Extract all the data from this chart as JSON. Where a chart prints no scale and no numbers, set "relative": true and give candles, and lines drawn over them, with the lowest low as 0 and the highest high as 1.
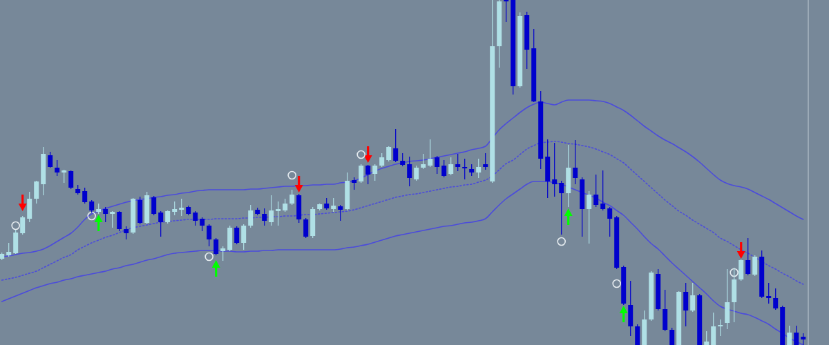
{
  "chart_data": {
    "type": "candlestick",
    "relative": true,
    "categories": [
      null,
      null,
      null,
      null,
      null,
      null,
      null,
      null,
      null,
      null,
      null,
      null,
      null,
      null,
      null,
      null,
      null,
      null,
      null,
      null,
      null,
      null,
      null,
      null,
      null,
      null,
      null,
      null,
      null,
      null,
      null,
      null,
      null,
      null,
      null,
      null,
      null,
      null,
      null,
      null,
      null,
      null,
      null,
      null,
      null,
      null,
      null,
      null,
      null,
      null,
      null,
      null,
      null,
      null,
      null,
      null,
      null,
      null,
      null,
      null,
      null,
      null,
      null,
      null,
      null,
      null,
      null,
      null,
      null,
      null,
      null,
      null,
      null,
      null,
      null,
      null,
      null,
      null,
      null,
      null,
      null,
      null,
      null,
      null,
      null,
      null,
      null,
      null,
      null,
      null,
      null,
      null,
      null,
      null,
      null,
      null,
      null,
      null,
      null,
      null,
      null,
      null,
      null,
      null,
      null,
      null,
      null,
      null,
      null,
      null,
      null,
      null,
      null,
      null,
      null,
      null,
      null
    ],
    "ohlc": [
      [
        0.25,
        0.268,
        0.246,
        0.264
      ],
      [
        0.26,
        0.296,
        0.256,
        0.27
      ],
      [
        0.266,
        0.334,
        0.264,
        0.326
      ],
      [
        0.324,
        0.374,
        0.32,
        0.37
      ],
      [
        0.366,
        0.444,
        0.356,
        0.424
      ],
      [
        0.424,
        0.476,
        0.41,
        0.474
      ],
      [
        0.466,
        0.574,
        0.434,
        0.554
      ],
      [
        0.55,
        0.56,
        0.514,
        0.516
      ],
      [
        0.514,
        0.536,
        0.49,
        0.5
      ],
      [
        0.5,
        0.508,
        0.47,
        0.506
      ],
      [
        0.504,
        0.506,
        0.452,
        0.456
      ],
      [
        0.452,
        0.464,
        0.436,
        0.44
      ],
      [
        0.446,
        0.456,
        0.41,
        0.414
      ],
      [
        0.416,
        0.42,
        0.384,
        0.39
      ],
      [
        0.386,
        0.41,
        0.38,
        0.394
      ],
      [
        0.394,
        0.4,
        0.356,
        0.38
      ],
      [
        0.38,
        0.388,
        0.34,
        0.386
      ],
      [
        0.386,
        0.388,
        0.33,
        0.336
      ],
      [
        0.336,
        0.344,
        0.306,
        0.324
      ],
      [
        0.326,
        0.426,
        0.322,
        0.424
      ],
      [
        0.42,
        0.43,
        0.35,
        0.354
      ],
      [
        0.354,
        0.444,
        0.35,
        0.434
      ],
      [
        0.428,
        0.432,
        0.376,
        0.38
      ],
      [
        0.384,
        0.388,
        0.314,
        0.356
      ],
      [
        0.356,
        0.39,
        0.352,
        0.388
      ],
      [
        0.386,
        0.416,
        0.376,
        0.394
      ],
      [
        0.392,
        0.424,
        0.374,
        0.398
      ],
      [
        0.4,
        0.404,
        0.376,
        0.38
      ],
      [
        0.384,
        0.388,
        0.346,
        0.36
      ],
      [
        0.366,
        0.37,
        0.33,
        0.346
      ],
      [
        0.346,
        0.35,
        0.286,
        0.306
      ],
      [
        0.306,
        0.31,
        0.26,
        0.264
      ],
      [
        0.272,
        0.286,
        0.244,
        0.28
      ],
      [
        0.276,
        0.346,
        0.272,
        0.34
      ],
      [
        0.34,
        0.344,
        0.292,
        0.296
      ],
      [
        0.296,
        0.35,
        0.276,
        0.346
      ],
      [
        0.346,
        0.406,
        0.34,
        0.39
      ],
      [
        0.392,
        0.398,
        0.376,
        0.38
      ],
      [
        0.38,
        0.396,
        0.346,
        0.36
      ],
      [
        0.356,
        0.434,
        0.346,
        0.39
      ],
      [
        0.388,
        0.416,
        0.346,
        0.394
      ],
      [
        0.39,
        0.424,
        0.386,
        0.41
      ],
      [
        0.41,
        0.45,
        0.406,
        0.436
      ],
      [
        0.434,
        0.438,
        0.354,
        0.364
      ],
      [
        0.364,
        0.368,
        0.31,
        0.314
      ],
      [
        0.316,
        0.4,
        0.31,
        0.394
      ],
      [
        0.394,
        0.41,
        0.39,
        0.408
      ],
      [
        0.41,
        0.426,
        0.392,
        0.396
      ],
      [
        0.394,
        0.426,
        0.386,
        0.404
      ],
      [
        0.402,
        0.406,
        0.36,
        0.392
      ],
      [
        0.394,
        0.5,
        0.39,
        0.476
      ],
      [
        0.478,
        0.486,
        0.45,
        0.47
      ],
      [
        0.474,
        0.524,
        0.47,
        0.52
      ],
      [
        0.52,
        0.522,
        0.466,
        0.494
      ],
      [
        0.496,
        0.524,
        0.476,
        0.52
      ],
      [
        0.52,
        0.556,
        0.516,
        0.544
      ],
      [
        0.536,
        0.576,
        0.532,
        0.574
      ],
      [
        0.57,
        0.626,
        0.53,
        0.534
      ],
      [
        0.534,
        0.556,
        0.518,
        0.522
      ],
      [
        0.524,
        0.546,
        0.46,
        0.484
      ],
      [
        0.48,
        0.52,
        0.476,
        0.514
      ],
      [
        0.514,
        0.554,
        0.51,
        0.524
      ],
      [
        0.52,
        0.596,
        0.516,
        0.54
      ],
      [
        0.544,
        0.548,
        0.496,
        0.516
      ],
      [
        0.52,
        0.536,
        0.486,
        0.49
      ],
      [
        0.496,
        0.544,
        0.492,
        0.524
      ],
      [
        0.524,
        0.554,
        0.504,
        0.516
      ],
      [
        0.516,
        0.54,
        0.48,
        0.512
      ],
      [
        0.51,
        0.524,
        0.49,
        0.5
      ],
      [
        0.5,
        0.54,
        0.484,
        0.516
      ],
      [
        0.524,
        0.556,
        0.508,
        0.516
      ],
      [
        0.474,
        1,
        0.47,
        0.866
      ],
      [
        0.866,
        1,
        0.804,
        0.996
      ],
      [
        1,
        1,
        0.936,
        0.996
      ],
      [
        1,
        1,
        0.726,
        0.75
      ],
      [
        0.75,
        0.964,
        0.746,
        0.954
      ],
      [
        0.956,
        0.966,
        0.8,
        0.856
      ],
      [
        0.86,
        0.916,
        0.704,
        0.706
      ],
      [
        0.706,
        0.736,
        0.51,
        0.54
      ],
      [
        0.546,
        0.596,
        0.426,
        0.474
      ],
      [
        0.48,
        0.586,
        0.43,
        0.466
      ],
      [
        0.47,
        0.476,
        0.32,
        0.44
      ],
      [
        0.44,
        0.58,
        0.4,
        0.514
      ],
      [
        0.514,
        0.594,
        0.466,
        0.484
      ],
      [
        0.48,
        0.486,
        0.314,
        0.394
      ],
      [
        0.394,
        0.446,
        0.294,
        0.436
      ],
      [
        0.436,
        0.494,
        0.4,
        0.406
      ],
      [
        0.41,
        0.506,
        0.39,
        0.394
      ],
      [
        0.396,
        0.4,
        0.314,
        0.366
      ],
      [
        0.37,
        0.374,
        0.22,
        0.224
      ],
      [
        0.226,
        0.23,
        0.116,
        0.12
      ],
      [
        0.116,
        0.186,
        0.026,
        0.054
      ],
      [
        0.054,
        0.06,
        0,
        0
      ],
      [
        0,
        0.1,
        0,
        0.074
      ],
      [
        0.074,
        0.214,
        0.07,
        0.21
      ],
      [
        0.206,
        0.22,
        0.1,
        0.104
      ],
      [
        0.104,
        0.16,
        0.04,
        0.044
      ],
      [
        0.044,
        0.05,
        0,
        0
      ],
      [
        0,
        0.156,
        0,
        0.154
      ],
      [
        0.154,
        0.18,
        0.054,
        0.1
      ],
      [
        0.1,
        0.18,
        0.096,
        0.144
      ],
      [
        0.144,
        0.148,
        0,
        0
      ],
      [
        0,
        0.04,
        0,
        0.01
      ],
      [
        0,
        0.094,
        0,
        0.054
      ],
      [
        0.054,
        0.074,
        0.026,
        0.058
      ],
      [
        0.064,
        0.22,
        0.046,
        0.124
      ],
      [
        0.124,
        0.224,
        0.066,
        0.19
      ],
      [
        0.19,
        0.248,
        0.186,
        0.246
      ],
      [
        0.246,
        0.31,
        0.202,
        0.206
      ],
      [
        0.204,
        0.26,
        0.2,
        0.256
      ],
      [
        0.256,
        0.274,
        0.136,
        0.14
      ],
      [
        0.142,
        0.18,
        0.12,
        0.136
      ],
      [
        0.136,
        0.164,
        0.102,
        0.106
      ],
      [
        0.11,
        0.114,
        0,
        0
      ],
      [
        0,
        0.056,
        0,
        0.036
      ],
      [
        0.036,
        0.056,
        0,
        0
      ],
      [
        0.024,
        0.034,
        0,
        0.016
      ]
    ],
    "colors": [
      "#b0e0e6",
      "#b0e0e6",
      "#b0e0e6",
      "#b0e0e6",
      "#b0e0e6",
      "#b0e0e6",
      "#b0e0e6",
      "#0000cd",
      "#0000cd",
      "#b0e0e6",
      "#0000cd",
      "#0000cd",
      "#0000cd",
      "#0000cd",
      "#b0e0e6",
      "#0000cd",
      "#b0e0e6",
      "#0000cd",
      "#0000cd",
      "#b0e0e6",
      "#0000cd",
      "#b0e0e6",
      "#0000cd",
      "#0000cd",
      "#b0e0e6",
      "#b0e0e6",
      "#b0e0e6",
      "#0000cd",
      "#0000cd",
      "#0000cd",
      "#0000cd",
      "#0000cd",
      "#b0e0e6",
      "#b0e0e6",
      "#0000cd",
      "#b0e0e6",
      "#b0e0e6",
      "#0000cd",
      "#0000cd",
      "#b0e0e6",
      "#b0e0e6",
      "#b0e0e6",
      "#b0e0e6",
      "#0000cd",
      "#0000cd",
      "#b0e0e6",
      "#b0e0e6",
      "#0000cd",
      "#b0e0e6",
      "#0000cd",
      "#b0e0e6",
      "#0000cd",
      "#b0e0e6",
      "#0000cd",
      "#b0e0e6",
      "#b0e0e6",
      "#b0e0e6",
      "#0000cd",
      "#0000cd",
      "#0000cd",
      "#b0e0e6",
      "#b0e0e6",
      "#b0e0e6",
      "#0000cd",
      "#0000cd",
      "#b0e0e6",
      "#0000cd",
      "#0000cd",
      "#0000cd",
      "#b0e0e6",
      "#0000cd",
      "#b0e0e6",
      "#b0e0e6",
      "#0000cd",
      "#0000cd",
      "#b0e0e6",
      "#0000cd",
      "#0000cd",
      "#0000cd",
      "#0000cd",
      "#0000cd",
      "#0000cd",
      "#b0e0e6",
      "#0000cd",
      "#0000cd",
      "#b0e0e6",
      "#0000cd",
      "#0000cd",
      "#0000cd",
      "#0000cd",
      "#0000cd",
      "#0000cd",
      "#0000cd",
      "#b0e0e6",
      "#b0e0e6",
      "#0000cd",
      "#0000cd",
      "#0000cd",
      "#b0e0e6",
      "#0000cd",
      "#b0e0e6",
      "#0000cd",
      "#b0e0e6",
      "#b0e0e6",
      "#b0e0e6",
      "#b0e0e6",
      "#b0e0e6",
      "#b0e0e6",
      "#0000cd",
      "#b0e0e6",
      "#0000cd",
      "#0000cd",
      "#0000cd",
      "#0000cd",
      "#b0e0e6",
      "#0000cd",
      "#0000cd"
    ],
    "series": [
      {
        "type": "line",
        "color": "#4b4bdc",
        "values": [
          0.256,
          0.258,
          0.262,
          0.266,
          0.268,
          0.272,
          0.278,
          0.288,
          0.3,
          0.312,
          0.324,
          0.342,
          0.364,
          0.38,
          0.388,
          0.396,
          0.402,
          0.408,
          0.414,
          0.418,
          0.422,
          0.424,
          0.428,
          0.43,
          0.434,
          0.436,
          0.44,
          0.442,
          0.446,
          0.448,
          0.45,
          0.45,
          0.45,
          0.45,
          0.45,
          0.45,
          0.452,
          0.452,
          0.454,
          0.456,
          0.458,
          0.46,
          0.46,
          0.462,
          0.462,
          0.464,
          0.464,
          0.466,
          0.466,
          0.47,
          0.472,
          0.476,
          0.484,
          0.494,
          0.504,
          0.512,
          0.518,
          0.524,
          0.528,
          0.532,
          0.534,
          0.536,
          0.54,
          0.544,
          0.548,
          0.552,
          0.556,
          0.56,
          0.566,
          0.57,
          0.576,
          0.6,
          0.624,
          0.642,
          0.658,
          0.674,
          0.688,
          0.698,
          0.704,
          0.7,
          0.696,
          0.704,
          0.71,
          0.71,
          0.71,
          0.71,
          0.708,
          0.706,
          0.7,
          0.69,
          0.68,
          0.666,
          0.65,
          0.634,
          0.62,
          0.606,
          0.594,
          0.584,
          0.572,
          0.56,
          0.546,
          0.53,
          0.512,
          0.494,
          0.478,
          0.468,
          0.462,
          0.458,
          0.452,
          0.442,
          0.432,
          0.422,
          0.41,
          0.398,
          0.386,
          0.374,
          0.364
        ]
      },
      {
        "type": "line",
        "color": "#4b4bdc",
        "line_style": "dotted",
        "values": [
          0.188,
          0.192,
          0.196,
          0.202,
          0.208,
          0.214,
          0.224,
          0.234,
          0.244,
          0.254,
          0.262,
          0.276,
          0.286,
          0.296,
          0.304,
          0.312,
          0.318,
          0.326,
          0.334,
          0.34,
          0.344,
          0.348,
          0.352,
          0.356,
          0.358,
          0.36,
          0.362,
          0.364,
          0.364,
          0.364,
          0.364,
          0.366,
          0.366,
          0.366,
          0.366,
          0.368,
          0.368,
          0.37,
          0.37,
          0.372,
          0.372,
          0.374,
          0.374,
          0.376,
          0.378,
          0.378,
          0.38,
          0.382,
          0.384,
          0.386,
          0.388,
          0.392,
          0.398,
          0.404,
          0.41,
          0.416,
          0.422,
          0.428,
          0.432,
          0.436,
          0.438,
          0.442,
          0.446,
          0.45,
          0.454,
          0.458,
          0.46,
          0.464,
          0.466,
          0.472,
          0.478,
          0.49,
          0.508,
          0.526,
          0.536,
          0.552,
          0.568,
          0.578,
          0.586,
          0.588,
          0.59,
          0.588,
          0.584,
          0.582,
          0.578,
          0.574,
          0.568,
          0.56,
          0.552,
          0.54,
          0.528,
          0.51,
          0.492,
          0.474,
          0.456,
          0.438,
          0.42,
          0.404,
          0.388,
          0.376,
          0.362,
          0.35,
          0.338,
          0.326,
          0.31,
          0.3,
          0.288,
          0.276,
          0.266,
          0.254,
          0.242,
          0.23,
          0.22,
          0.208,
          0.198,
          0.186,
          0.176
        ]
      },
      {
        "type": "line",
        "color": "#4b4bdc",
        "values": [
          0.126,
          0.134,
          0.142,
          0.15,
          0.158,
          0.166,
          0.172,
          0.178,
          0.182,
          0.188,
          0.192,
          0.198,
          0.202,
          0.206,
          0.21,
          0.214,
          0.22,
          0.224,
          0.23,
          0.234,
          0.24,
          0.246,
          0.25,
          0.256,
          0.262,
          0.266,
          0.268,
          0.27,
          0.272,
          0.274,
          0.274,
          0.274,
          0.272,
          0.272,
          0.27,
          0.27,
          0.272,
          0.272,
          0.274,
          0.274,
          0.276,
          0.276,
          0.276,
          0.276,
          0.276,
          0.276,
          0.276,
          0.276,
          0.276,
          0.278,
          0.282,
          0.284,
          0.288,
          0.292,
          0.298,
          0.304,
          0.31,
          0.316,
          0.32,
          0.324,
          0.328,
          0.332,
          0.336,
          0.34,
          0.344,
          0.346,
          0.35,
          0.354,
          0.356,
          0.36,
          0.366,
          0.386,
          0.406,
          0.424,
          0.438,
          0.452,
          0.466,
          0.474,
          0.474,
          0.474,
          0.47,
          0.466,
          0.458,
          0.45,
          0.442,
          0.434,
          0.426,
          0.414,
          0.404,
          0.39,
          0.376,
          0.356,
          0.336,
          0.314,
          0.294,
          0.278,
          0.258,
          0.238,
          0.22,
          0.202,
          0.184,
          0.166,
          0.148,
          0.128,
          0.112,
          0.104,
          0.098,
          0.092,
          0.088,
          0.08,
          0.07,
          0.06,
          0.046,
          0.034,
          0.02,
          0.01,
          0
        ]
      },
      {
        "type": "scatter",
        "color": "#ff0000",
        "values": [
          null,
          null,
          null,
          0.412,
          null,
          null,
          null,
          null,
          null,
          null,
          null,
          null,
          null,
          null,
          null,
          null,
          null,
          null,
          null,
          null,
          null,
          null,
          null,
          null,
          null,
          null,
          null,
          null,
          null,
          null,
          null,
          null,
          null,
          null,
          null,
          null,
          null,
          null,
          null,
          null,
          null,
          null,
          null,
          0.466,
          null,
          null,
          null,
          null,
          null,
          null,
          null,
          null,
          null,
          0.552,
          null,
          null,
          null,
          null,
          null,
          null,
          null,
          null,
          null,
          null,
          null,
          null,
          null,
          null,
          null,
          null,
          null,
          null,
          null,
          null,
          null,
          null,
          null,
          null,
          null,
          null,
          null,
          null,
          null,
          null,
          null,
          null,
          null,
          null,
          null,
          null,
          null,
          null,
          null,
          null,
          null,
          null,
          null,
          null,
          null,
          null,
          null,
          null,
          null,
          null,
          null,
          null,
          null,
          0.274,
          null,
          null,
          null,
          null,
          null,
          null,
          null,
          null,
          null
        ]
      },
      {
        "type": "scatter",
        "color": "#00ff00",
        "values": [
          null,
          null,
          null,
          null,
          null,
          null,
          null,
          null,
          null,
          null,
          null,
          null,
          null,
          null,
          0.354,
          null,
          null,
          null,
          null,
          null,
          null,
          null,
          null,
          null,
          null,
          null,
          null,
          null,
          null,
          null,
          null,
          0.222,
          null,
          null,
          null,
          null,
          null,
          null,
          null,
          null,
          null,
          null,
          null,
          null,
          null,
          null,
          null,
          null,
          null,
          null,
          null,
          null,
          null,
          null,
          null,
          null,
          null,
          null,
          null,
          null,
          null,
          null,
          null,
          null,
          null,
          null,
          null,
          null,
          null,
          null,
          null,
          null,
          null,
          null,
          null,
          null,
          null,
          null,
          null,
          null,
          null,
          null,
          0.372,
          null,
          null,
          null,
          null,
          null,
          null,
          null,
          0.09,
          null,
          null,
          null,
          null,
          null,
          null,
          null,
          null,
          null,
          null,
          null,
          null,
          null,
          null,
          null,
          null,
          null,
          null,
          null,
          null,
          null,
          null,
          null,
          null,
          null,
          null
        ]
      },
      {
        "type": "scatter",
        "marker": "circle",
        "color": "#e6ecf0",
        "values": [
          null,
          null,
          0.346,
          null,
          null,
          null,
          null,
          null,
          null,
          null,
          null,
          null,
          null,
          0.374,
          null,
          null,
          null,
          null,
          null,
          null,
          null,
          null,
          null,
          null,
          null,
          null,
          null,
          null,
          null,
          null,
          0.256,
          null,
          null,
          null,
          null,
          null,
          null,
          null,
          null,
          null,
          null,
          null,
          0.492,
          null,
          null,
          null,
          null,
          null,
          null,
          null,
          null,
          null,
          0.552,
          null,
          null,
          null,
          null,
          null,
          null,
          null,
          null,
          null,
          null,
          null,
          null,
          null,
          null,
          null,
          null,
          null,
          null,
          null,
          null,
          null,
          null,
          null,
          null,
          null,
          null,
          null,
          null,
          0.3,
          null,
          null,
          null,
          null,
          null,
          null,
          null,
          0.178,
          null,
          null,
          null,
          null,
          null,
          null,
          null,
          null,
          null,
          null,
          null,
          null,
          null,
          null,
          null,
          null,
          0.21,
          null,
          null,
          null,
          null,
          null,
          null,
          null,
          null,
          null,
          null
        ]
      }
    ]
  }
}
